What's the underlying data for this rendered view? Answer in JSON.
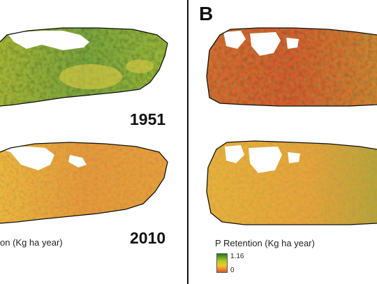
{
  "panels": {
    "left": {
      "top_year": "1951",
      "bottom_year": "2010",
      "legend_partial": "on (Kg ha year)"
    },
    "right": {
      "letter": "B",
      "legend_title": "P Retention (Kg ha year)",
      "legend_max": "1.16",
      "legend_min": "0"
    }
  },
  "colors": {
    "dark_green": "#2e6b1e",
    "green": "#7aa83a",
    "yellow": "#f0d24a",
    "orange": "#e98a35",
    "red": "#d9482b",
    "outline": "#111111"
  }
}
